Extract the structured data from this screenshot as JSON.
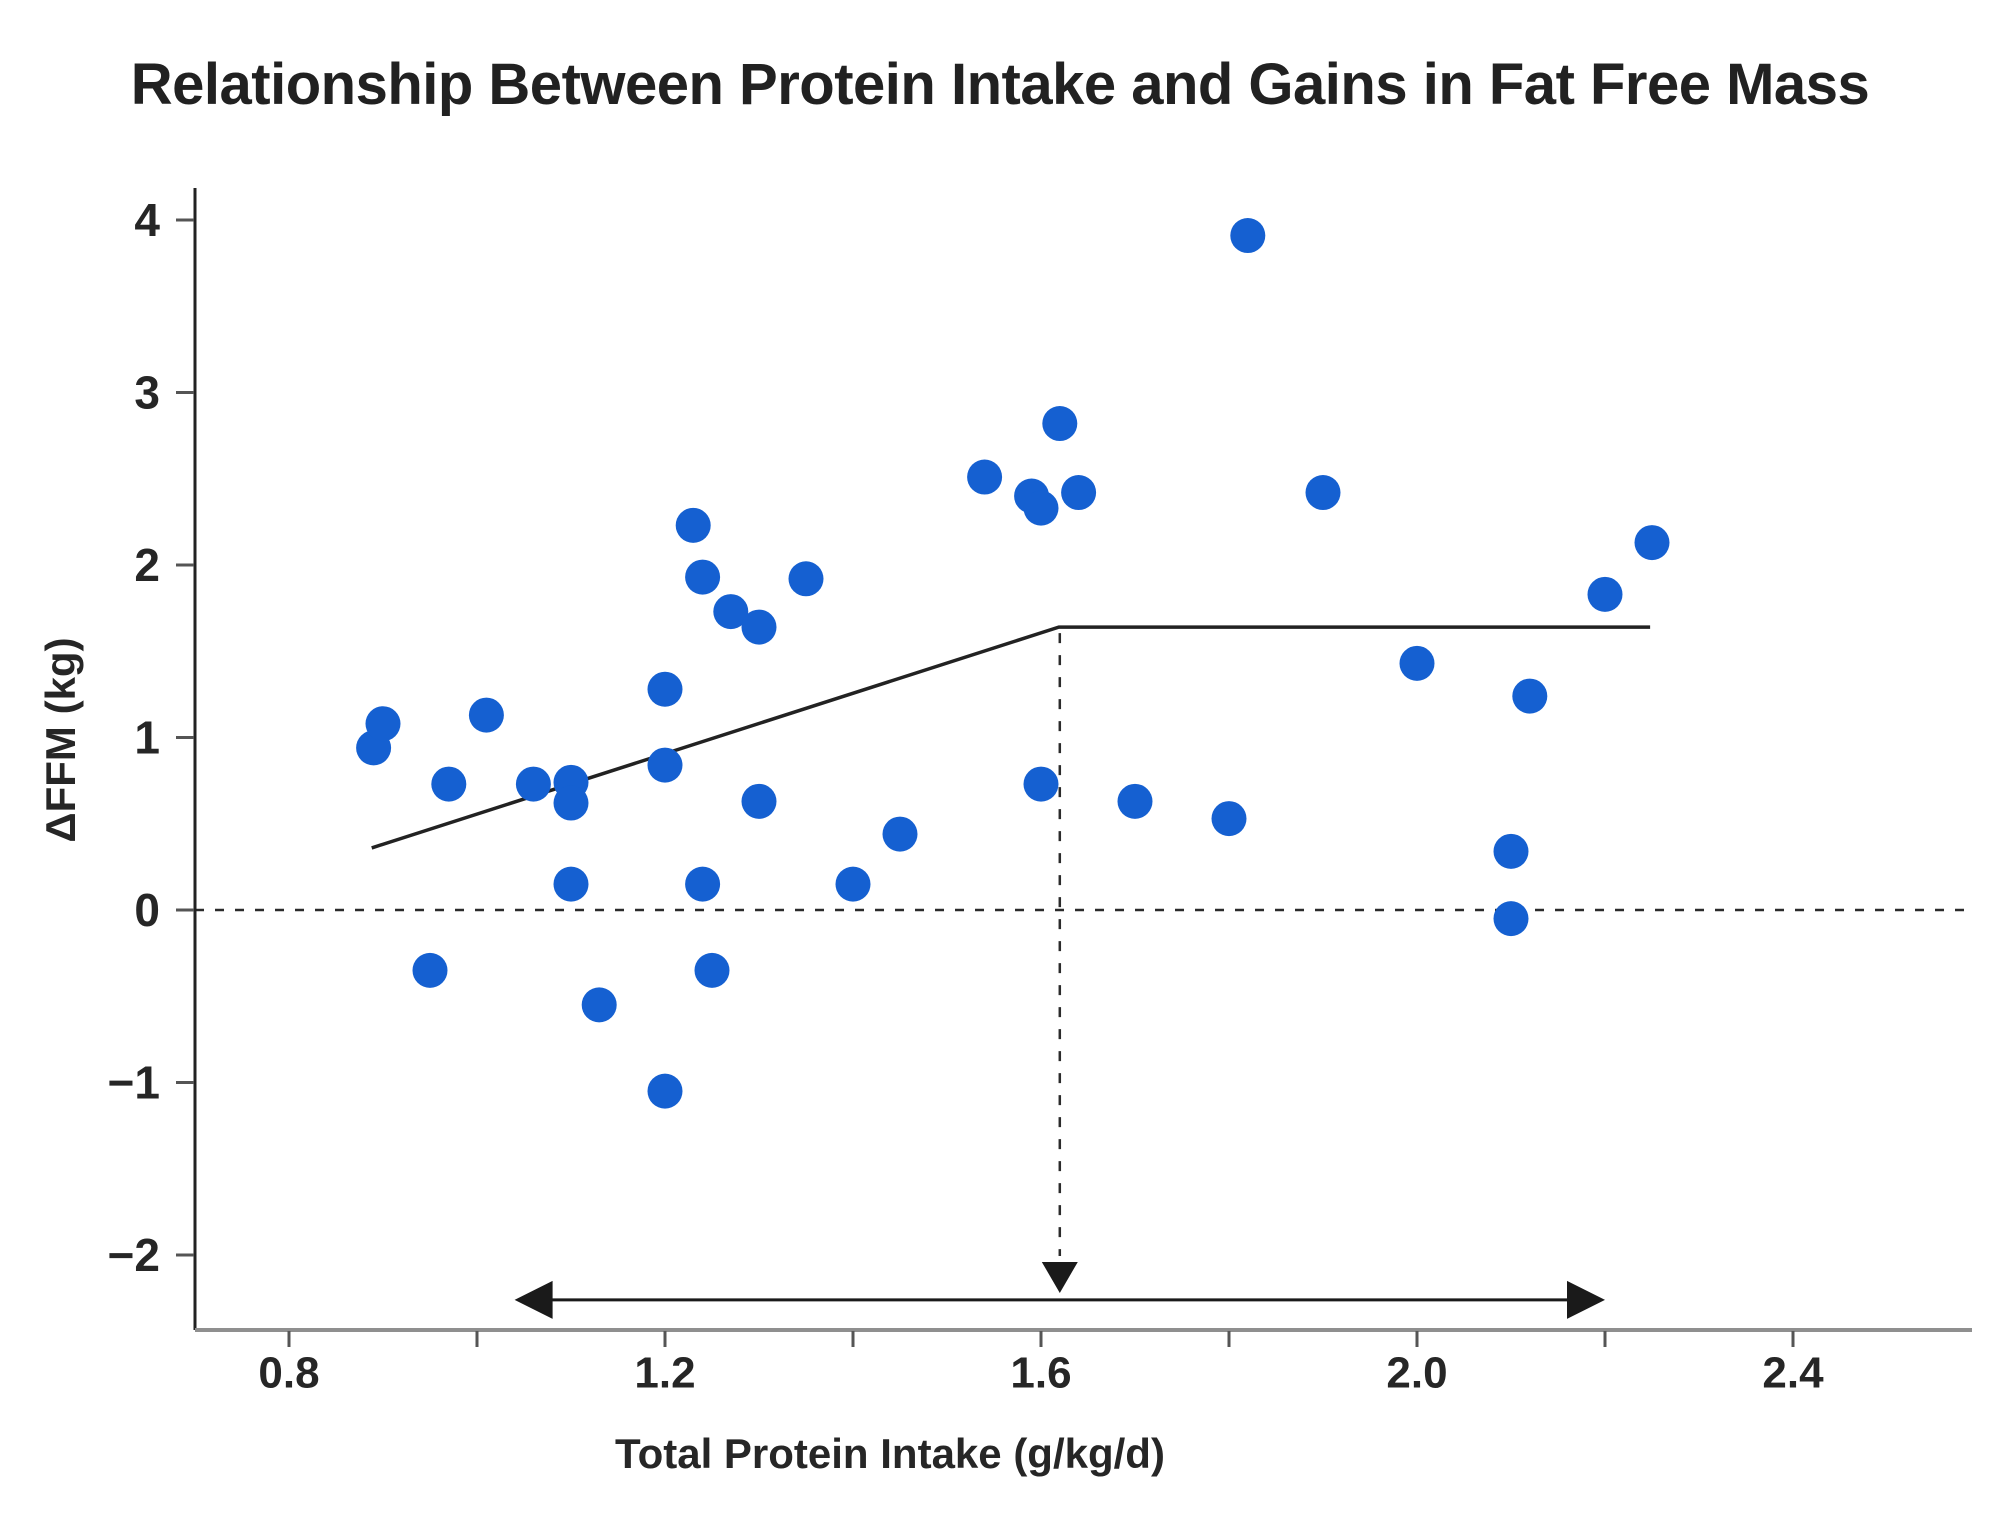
{
  "title": "Relationship Between Protein Intake and Gains in Fat Free Mass",
  "chart_data": {
    "type": "scatter",
    "title": "Relationship Between Protein Intake and Gains in Fat Free Mass",
    "xlabel": "Total Protein Intake (g/kg/d)",
    "ylabel": "ΔFFM (kg)",
    "xlim": [
      0.8,
      2.4
    ],
    "ylim": [
      -2,
      4
    ],
    "grid": false,
    "legend": "none",
    "x_ticks": [
      {
        "v": 0.8,
        "label": "0.8"
      },
      {
        "v": 1.2,
        "label": "1.2"
      },
      {
        "v": 1.6,
        "label": "1.6"
      },
      {
        "v": 2.0,
        "label": "2.0"
      },
      {
        "v": 2.4,
        "label": "2.4"
      }
    ],
    "x_minor_ticks": [
      1.0,
      1.4,
      1.8,
      2.2
    ],
    "y_ticks": [
      {
        "v": 4,
        "label": "4"
      },
      {
        "v": 3,
        "label": "3"
      },
      {
        "v": 2,
        "label": "2"
      },
      {
        "v": 1,
        "label": "1"
      },
      {
        "v": 0,
        "label": "0"
      },
      {
        "v": -1,
        "label": "−1"
      },
      {
        "v": -2,
        "label": "−2"
      }
    ],
    "points": [
      [
        0.89,
        0.94
      ],
      [
        0.9,
        1.08
      ],
      [
        0.95,
        -0.35
      ],
      [
        0.97,
        0.73
      ],
      [
        1.01,
        1.13
      ],
      [
        1.06,
        0.73
      ],
      [
        1.1,
        0.74
      ],
      [
        1.1,
        0.62
      ],
      [
        1.1,
        0.15
      ],
      [
        1.13,
        -0.55
      ],
      [
        1.2,
        1.28
      ],
      [
        1.2,
        0.84
      ],
      [
        1.2,
        -1.05
      ],
      [
        1.23,
        2.23
      ],
      [
        1.24,
        1.93
      ],
      [
        1.24,
        0.15
      ],
      [
        1.25,
        -0.35
      ],
      [
        1.27,
        1.73
      ],
      [
        1.3,
        1.64
      ],
      [
        1.3,
        0.63
      ],
      [
        1.35,
        1.92
      ],
      [
        1.4,
        0.15
      ],
      [
        1.45,
        0.44
      ],
      [
        1.54,
        2.51
      ],
      [
        1.59,
        2.4
      ],
      [
        1.6,
        2.33
      ],
      [
        1.62,
        2.82
      ],
      [
        1.64,
        2.42
      ],
      [
        1.6,
        0.73
      ],
      [
        1.7,
        0.63
      ],
      [
        1.8,
        0.53
      ],
      [
        1.82,
        3.91
      ],
      [
        1.9,
        2.42
      ],
      [
        2.0,
        1.43
      ],
      [
        2.1,
        0.34
      ],
      [
        2.1,
        -0.05
      ],
      [
        2.12,
        1.24
      ],
      [
        2.2,
        1.83
      ],
      [
        2.25,
        2.13
      ]
    ],
    "trend_line": {
      "points": [
        [
          0.888,
          0.36
        ],
        [
          1.619,
          1.64
        ],
        [
          2.248,
          1.64
        ]
      ],
      "breakpoint_x": 1.62
    },
    "zero_reference_line_y": 0,
    "breakpoint_marker": {
      "x": 1.62,
      "from_y": 1.64,
      "arrow_tip_y": -2.22
    },
    "range_arrow": {
      "x_start": 1.04,
      "x_end": 2.2,
      "y": -2.26
    },
    "colors": {
      "dot": "#1560d1",
      "trend_line": "#222222",
      "annotation": "#1a1a1a",
      "y_spine": "#222222",
      "x_spine": "#8f8f8f",
      "tick": "#555555",
      "text": "#262626"
    },
    "dot_radius_px": 17.5
  }
}
